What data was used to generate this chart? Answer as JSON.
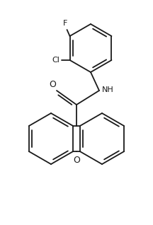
{
  "background": "#ffffff",
  "lc": "#1a1a1a",
  "lw": 1.3,
  "fs": 8.0,
  "figsize": [
    2.16,
    3.18
  ],
  "dpi": 100,
  "xlim": [
    0.0,
    2.16
  ],
  "ylim": [
    0.0,
    3.18
  ]
}
